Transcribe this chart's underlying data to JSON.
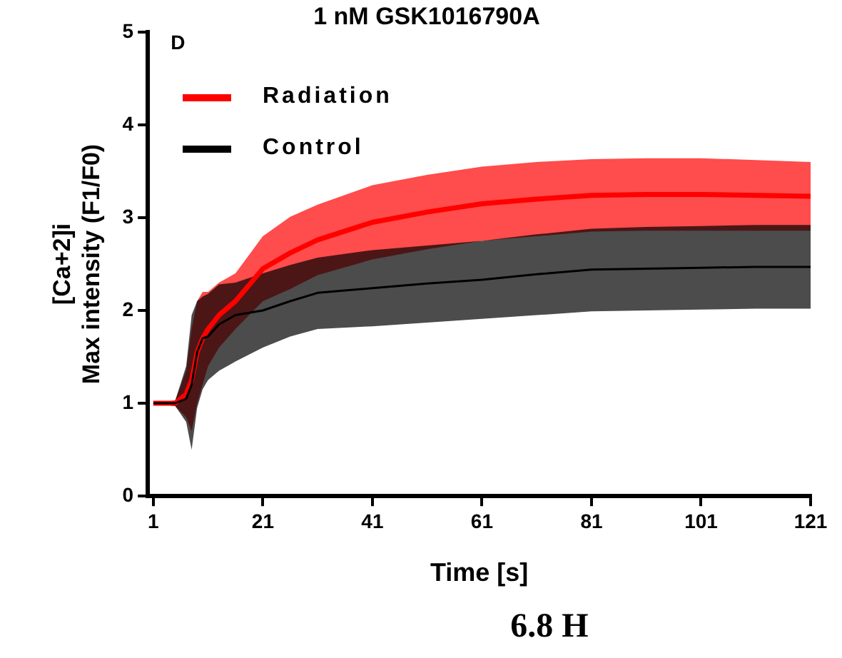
{
  "chart_data": {
    "type": "line",
    "title": "1 nM GSK1016790A",
    "xlabel": "Time [s]",
    "ylabel": "[Ca+2]i\nMax intensity (F1/F0)",
    "annotations": [
      "D",
      "6.8 H"
    ],
    "x": [
      1,
      5,
      7,
      8,
      9,
      10,
      11,
      13,
      16,
      21,
      26,
      31,
      41,
      51,
      61,
      71,
      81,
      91,
      101,
      111,
      121
    ],
    "series": [
      {
        "name": "Radiation",
        "color": "#ff0000",
        "values": [
          1,
          1.0,
          1.1,
          1.25,
          1.55,
          1.7,
          1.8,
          1.95,
          2.1,
          2.45,
          2.62,
          2.76,
          2.95,
          3.06,
          3.15,
          3.2,
          3.24,
          3.25,
          3.25,
          3.24,
          3.23
        ],
        "lower": [
          1,
          0.97,
          0.85,
          0.7,
          1.0,
          1.2,
          1.4,
          1.6,
          1.8,
          2.1,
          2.23,
          2.38,
          2.55,
          2.66,
          2.75,
          2.8,
          2.85,
          2.86,
          2.86,
          2.86,
          2.86
        ],
        "upper": [
          1,
          1.03,
          1.35,
          1.8,
          2.1,
          2.2,
          2.2,
          2.3,
          2.4,
          2.8,
          3.01,
          3.14,
          3.35,
          3.46,
          3.55,
          3.6,
          3.63,
          3.64,
          3.64,
          3.62,
          3.6
        ]
      },
      {
        "name": "Control",
        "color": "#000000",
        "values": [
          1,
          1.0,
          1.05,
          1.2,
          1.55,
          1.7,
          1.72,
          1.85,
          1.95,
          2.0,
          2.1,
          2.19,
          2.24,
          2.29,
          2.33,
          2.39,
          2.44,
          2.45,
          2.46,
          2.47,
          2.47
        ],
        "lower": [
          1,
          0.97,
          0.8,
          0.5,
          0.95,
          1.15,
          1.25,
          1.35,
          1.45,
          1.6,
          1.72,
          1.8,
          1.83,
          1.87,
          1.91,
          1.95,
          1.99,
          2.0,
          2.01,
          2.02,
          2.02
        ],
        "upper": [
          1,
          1.03,
          1.4,
          1.95,
          2.1,
          2.15,
          2.18,
          2.28,
          2.3,
          2.4,
          2.49,
          2.57,
          2.65,
          2.7,
          2.75,
          2.82,
          2.88,
          2.9,
          2.91,
          2.92,
          2.92
        ]
      }
    ],
    "xlim": [
      0,
      121
    ],
    "xticks": [
      1,
      21,
      41,
      61,
      81,
      101,
      121
    ],
    "ylim": [
      0,
      5
    ],
    "yticks": [
      0,
      1,
      2,
      3,
      4,
      5
    ],
    "grid": false,
    "legend": "top left",
    "marker": "none",
    "line_style": "solid"
  }
}
